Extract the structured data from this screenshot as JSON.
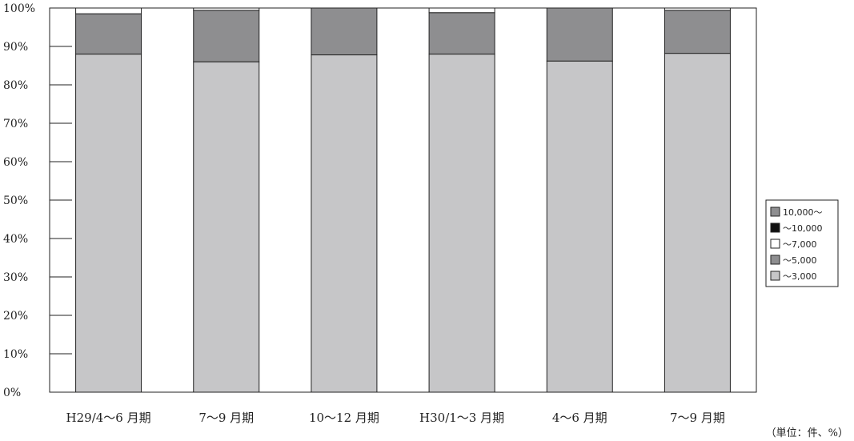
{
  "chart_data": {
    "type": "bar",
    "stacked": true,
    "percent": true,
    "categories": [
      "H29/4～6 月期",
      "7～9 月期",
      "10～12 月期",
      "H30/1～3 月期",
      "4～6 月期",
      "7～9 月期"
    ],
    "series": [
      {
        "name": "～3,000",
        "color": "#c6c6c8",
        "values": [
          88.0,
          86.0,
          87.8,
          88.0,
          86.2,
          88.2
        ]
      },
      {
        "name": "～5,000",
        "color": "#8e8e90",
        "values": [
          10.5,
          13.4,
          12.2,
          10.8,
          13.8,
          11.2
        ]
      },
      {
        "name": "～7,000",
        "color": "#ffffff",
        "values": [
          1.5,
          0.6,
          0.0,
          1.2,
          0.0,
          0.6
        ]
      },
      {
        "name": "～10,000",
        "color": "#111111",
        "values": [
          0,
          0,
          0,
          0,
          0,
          0
        ]
      },
      {
        "name": "10,000～",
        "color": "#8e8e90",
        "values": [
          0,
          0,
          0,
          0,
          0,
          0
        ]
      }
    ],
    "yticks": [
      "0%",
      "10%",
      "20%",
      "30%",
      "40%",
      "50%",
      "60%",
      "70%",
      "80%",
      "90%",
      "100%"
    ],
    "ylim": [
      0,
      100
    ],
    "legend_position": "right",
    "legend_order": [
      "10,000～",
      "～10,000",
      "～7,000",
      "～5,000",
      "～3,000"
    ],
    "unit_note": "（単位：件、%）"
  }
}
